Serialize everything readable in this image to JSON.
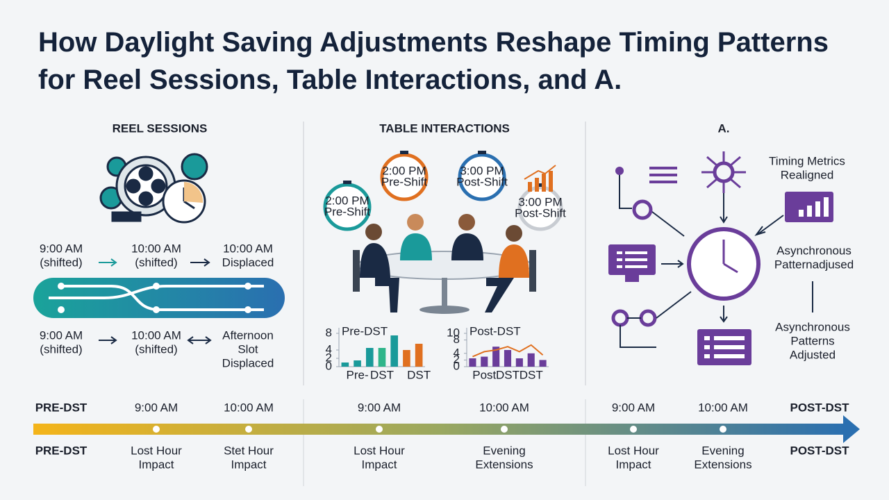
{
  "title": "How Daylight Saving Adjustments Reshape Timing Patterns for Reel Sessions, Table Interactions, and A.",
  "reel_sessions": {
    "heading": "REEL SESSIONS",
    "top_row": [
      [
        "9:00 AM",
        "(shifted)"
      ],
      [
        "10:00 AM",
        "(shifted)"
      ],
      [
        "10:00 AM",
        "Displaced"
      ]
    ],
    "bottom_row": [
      [
        "9:00 AM",
        "(shifted)"
      ],
      [
        "10:00 AM",
        "(shifted)"
      ],
      [
        "Afternoon",
        "Slot",
        "Displaced"
      ]
    ]
  },
  "table_interactions": {
    "heading": "TABLE INTERACTIONS",
    "clocks": [
      [
        "2:00 PM",
        "Pre-Shift"
      ],
      [
        "2:00 PM",
        "Pre-Shift"
      ],
      [
        "3:00 PM",
        "Post-Shift"
      ],
      [
        "3:00 PM",
        "Post-Shift"
      ]
    ],
    "charts": [
      {
        "type": "bar",
        "title": "Pre-DST",
        "categories": [
          null,
          "Pre-",
          null,
          "DST",
          null,
          null,
          "DST"
        ],
        "values": [
          1,
          1.5,
          4.5,
          4.5,
          7.5,
          4,
          5.5
        ],
        "colors": [
          "#1a9a9a",
          "#1a9a9a",
          "#1a9a9a",
          "#2fb58a",
          "#1a9a9a",
          "#e07020",
          "#e07020"
        ],
        "ylim": [
          0,
          8
        ],
        "yticks": [
          0,
          2,
          4,
          8
        ]
      },
      {
        "type": "bar",
        "title": "Post-DST",
        "categories": [
          null,
          "Post",
          null,
          "DST",
          null,
          "DST",
          null
        ],
        "values": [
          2.5,
          3,
          6,
          5,
          2.5,
          4,
          2
        ],
        "colors": [
          "#6a3d9a",
          "#6a3d9a",
          "#6a3d9a",
          "#6a3d9a",
          "#6a3d9a",
          "#6a3d9a",
          "#6a3d9a"
        ],
        "line": {
          "values": [
            3,
            4.5,
            5,
            6,
            4.5,
            6.5,
            3.5
          ],
          "color": "#e07020"
        },
        "ylim": [
          0,
          10
        ],
        "yticks": [
          0,
          2,
          4,
          8,
          10
        ]
      }
    ]
  },
  "a_section": {
    "heading": "A.",
    "labels": [
      [
        "Timing Metrics",
        "Realigned"
      ],
      [
        "Asynchronous",
        "Patternadjused"
      ],
      [
        "Asynchronous",
        "Patterns",
        "Adjusted"
      ]
    ]
  },
  "timeline": {
    "top": [
      "PRE-DST",
      "9:00 AM",
      "10:00 AM",
      "9:00 AM",
      "10:00 AM",
      "9:00 AM",
      "10:00 AM",
      "POST-DST"
    ],
    "bottom": [
      [
        "PRE-DST"
      ],
      [
        "Lost Hour",
        "Impact"
      ],
      [
        "Stet Hour",
        "Impact"
      ],
      [
        "Lost Hour",
        "Impact"
      ],
      [
        "Evening",
        "Extensions"
      ],
      [
        "Lost Hour",
        "Impact"
      ],
      [
        "Evening",
        "Extensions"
      ],
      [
        "POST-DST"
      ]
    ]
  }
}
